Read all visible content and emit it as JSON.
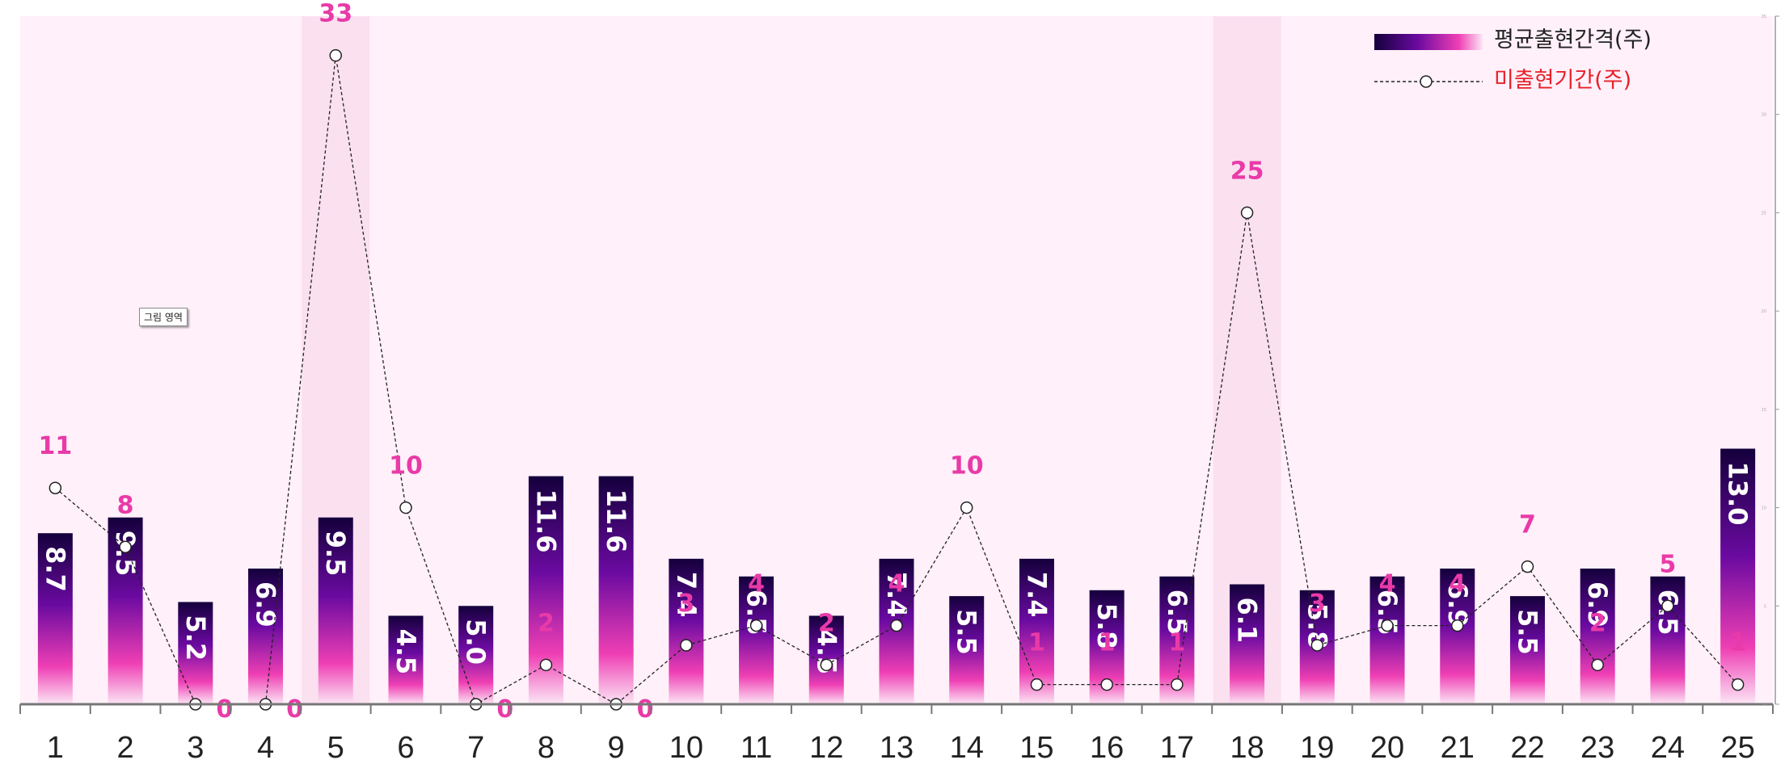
{
  "chart_data": {
    "type": "bar",
    "categories": [
      "1",
      "2",
      "3",
      "4",
      "5",
      "6",
      "7",
      "8",
      "9",
      "10",
      "11",
      "12",
      "13",
      "14",
      "15",
      "16",
      "17",
      "18",
      "19",
      "20",
      "21",
      "22",
      "23",
      "24",
      "25"
    ],
    "series": [
      {
        "name": "평균출현간격(주)",
        "type": "bar",
        "values": [
          8.7,
          9.5,
          5.2,
          6.9,
          9.5,
          4.5,
          5.0,
          11.6,
          11.6,
          7.4,
          6.5,
          4.5,
          7.4,
          5.5,
          7.4,
          5.8,
          6.5,
          6.1,
          5.8,
          6.5,
          6.9,
          5.5,
          6.9,
          6.5,
          13.0
        ]
      },
      {
        "name": "미출현기간(주)",
        "type": "line",
        "values": [
          11,
          8,
          0,
          0,
          33,
          10,
          0,
          2,
          0,
          3,
          4,
          2,
          4,
          10,
          1,
          1,
          1,
          25,
          3,
          4,
          4,
          7,
          2,
          5,
          1
        ]
      }
    ],
    "highlighted_categories": [
      "5",
      "18"
    ],
    "ylim": [
      0,
      35
    ],
    "legend_position": "top-right",
    "grid": false,
    "colors": {
      "plot_bg": "#fff0f9",
      "highlight_band": "#fbe0f0",
      "bar_top": "#14003c",
      "bar_mid": "#6a0aa0",
      "bar_low": "#ef3fb4",
      "bar_bottom": "#fce6f5",
      "point_label": "#e93aa8",
      "legend_line_label": "#e8202a",
      "line": "#222222"
    }
  },
  "plot_tooltip": "그림 영역"
}
